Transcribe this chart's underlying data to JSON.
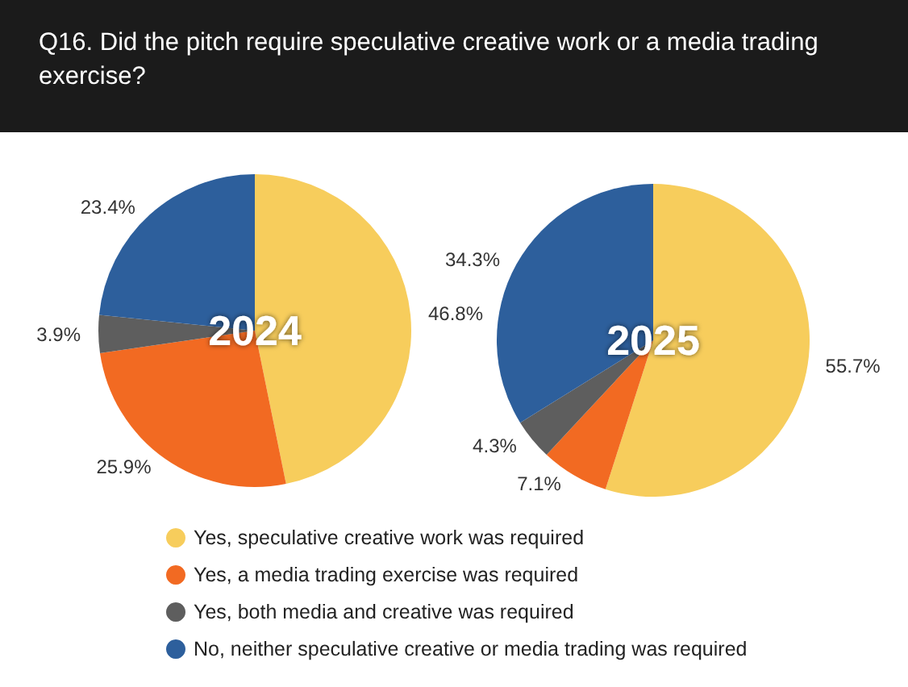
{
  "chart_data": {
    "type": "pie",
    "title": "Q16. Did the pitch require speculative creative work or a media trading exercise?",
    "categories": [
      "Yes, speculative creative work was required",
      "Yes, a media trading exercise was required",
      "Yes, both media and creative was required",
      "No, neither speculative creative or media trading was required"
    ],
    "colors": [
      "#f7cd5c",
      "#f26a22",
      "#5e5e5e",
      "#2d5f9c"
    ],
    "legend": "bottom",
    "series": [
      {
        "name": "2024",
        "values": [
          46.8,
          25.9,
          3.9,
          23.4
        ],
        "value_labels": [
          "46.8%",
          "25.9%",
          "3.9%",
          "23.4%"
        ]
      },
      {
        "name": "2025",
        "values": [
          55.7,
          7.1,
          4.3,
          34.3
        ],
        "value_labels": [
          "55.7%",
          "7.1%",
          "4.3%",
          "34.3%"
        ]
      }
    ]
  }
}
